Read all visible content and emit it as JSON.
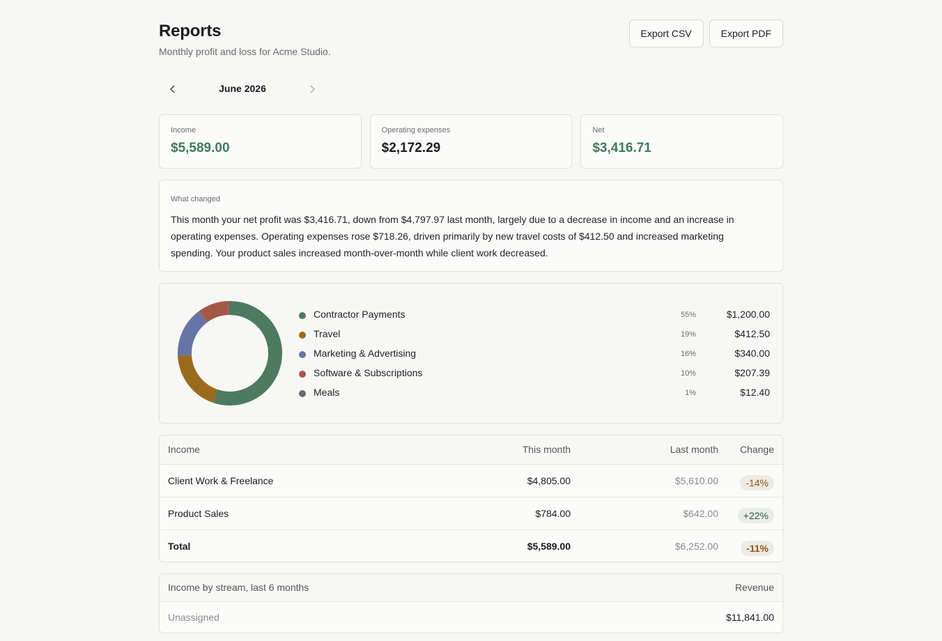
{
  "header": {
    "title": "Reports",
    "subtitle": "Monthly profit and loss for Acme Studio.",
    "export_csv": "Export CSV",
    "export_pdf": "Export PDF"
  },
  "month_nav": {
    "label": "June 2026"
  },
  "summary": {
    "income": {
      "label": "Income",
      "value": "$5,589.00"
    },
    "expenses": {
      "label": "Operating expenses",
      "value": "$2,172.29"
    },
    "net": {
      "label": "Net",
      "value": "$3,416.71"
    }
  },
  "what_changed": {
    "label": "What changed",
    "text": "This month your net profit was $3,416.71, down from $4,797.97 last month, largely due to a decrease in income and an increase in operating expenses. Operating expenses rose $718.26, driven primarily by new travel costs of $412.50 and increased marketing spending. Your product sales increased month-over-month while client work decreased."
  },
  "expense_breakdown": {
    "items": [
      {
        "name": "Contractor Payments",
        "pct": "55%",
        "amount": "$1,200.00",
        "value": 1200.0,
        "color": "#4e7a61"
      },
      {
        "name": "Travel",
        "pct": "19%",
        "amount": "$412.50",
        "value": 412.5,
        "color": "#9a6b1c"
      },
      {
        "name": "Marketing & Advertising",
        "pct": "16%",
        "amount": "$340.00",
        "value": 340.0,
        "color": "#6574a6"
      },
      {
        "name": "Software & Subscriptions",
        "pct": "10%",
        "amount": "$207.39",
        "value": 207.39,
        "color": "#a5574a"
      },
      {
        "name": "Meals",
        "pct": "1%",
        "amount": "$12.40",
        "value": 12.4,
        "color": "#6b6b6b"
      }
    ]
  },
  "income_table": {
    "headers": {
      "name": "Income",
      "this_month": "This month",
      "last_month": "Last month",
      "change": "Change"
    },
    "rows": [
      {
        "name": "Client Work & Freelance",
        "this_month": "$4,805.00",
        "last_month": "$5,610.00",
        "change": "-14%"
      },
      {
        "name": "Product Sales",
        "this_month": "$784.00",
        "last_month": "$642.00",
        "change": "+22%"
      }
    ],
    "total": {
      "name": "Total",
      "this_month": "$5,589.00",
      "last_month": "$6,252.00",
      "change": "-11%"
    }
  },
  "streams": {
    "header": {
      "label": "Income by stream, last 6 months",
      "value_label": "Revenue"
    },
    "rows": [
      {
        "name": "Unassigned",
        "value": "$11,841.00"
      }
    ]
  }
}
